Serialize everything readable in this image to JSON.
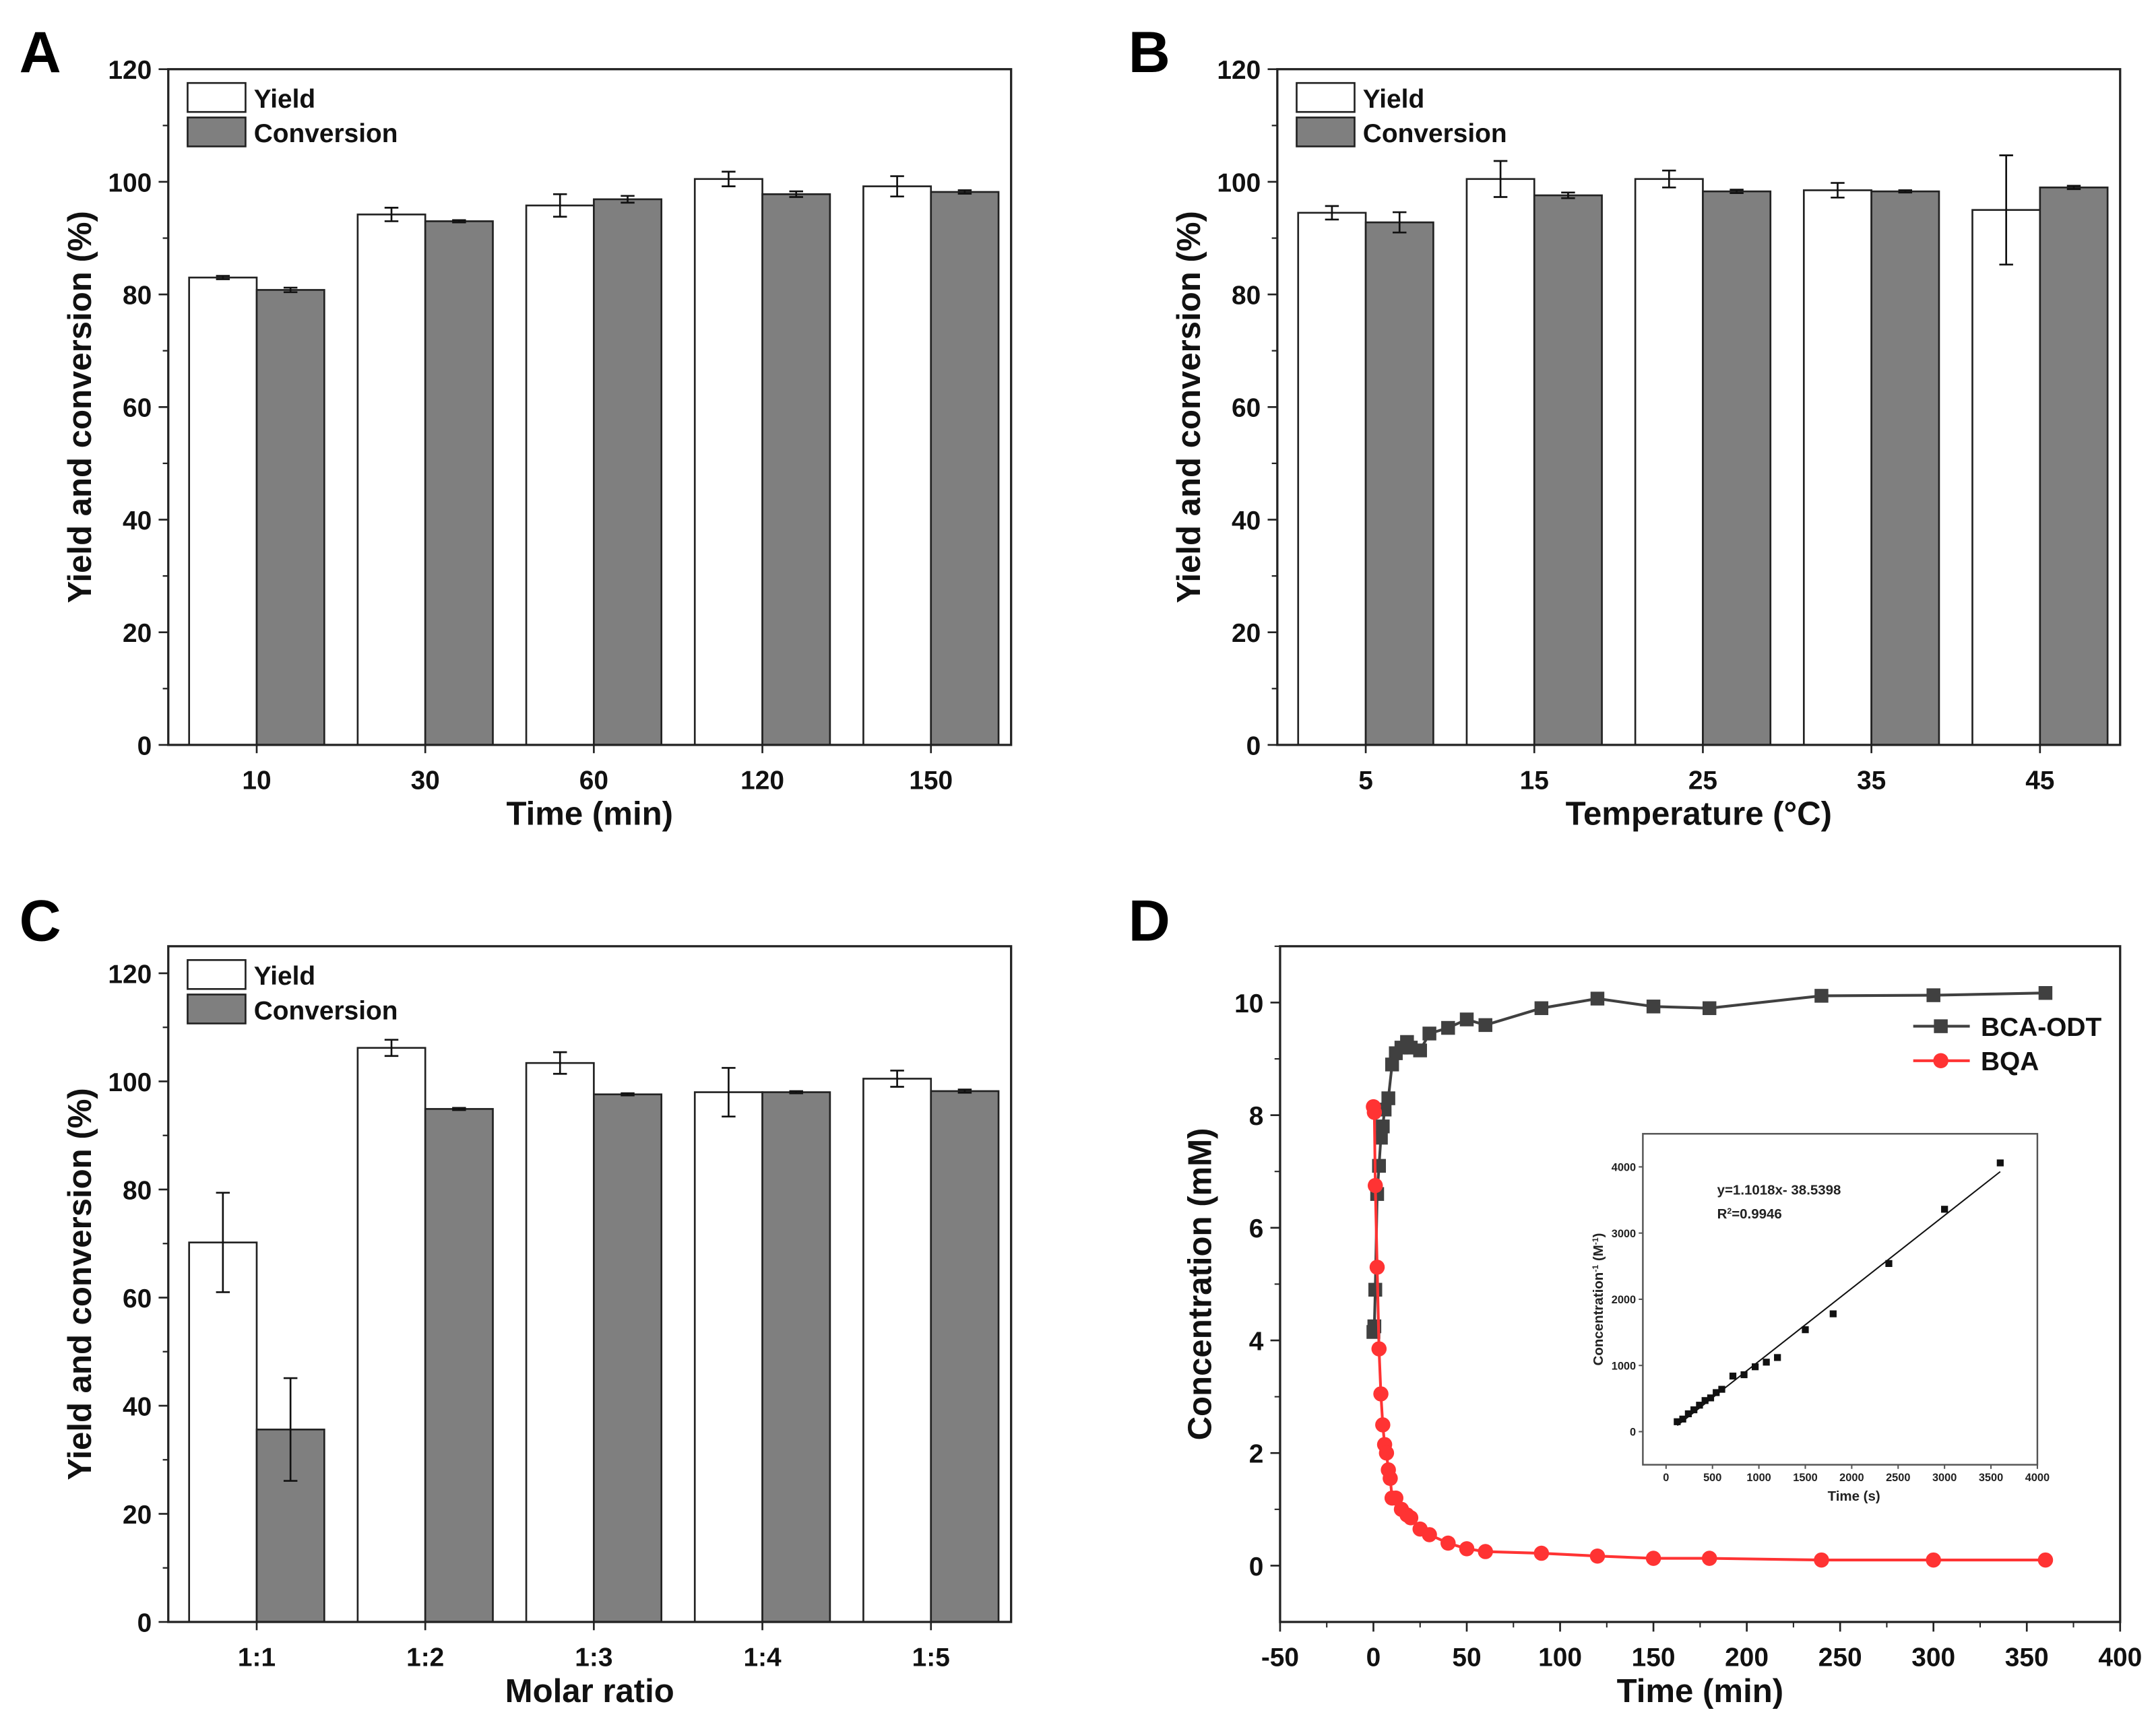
{
  "chart_data": [
    {
      "panel": "A",
      "type": "bar",
      "xlabel": "Time (min)",
      "ylabel": "Yield and conversion (%)",
      "ylim": [
        0,
        120
      ],
      "yticks": [
        0,
        20,
        40,
        60,
        80,
        100,
        120
      ],
      "categories": [
        "10",
        "30",
        "60",
        "120",
        "150"
      ],
      "legend_position": "top-left",
      "series": [
        {
          "name": "Yield",
          "color": "#ffffff",
          "values": [
            83.0,
            94.2,
            95.8,
            100.5,
            99.2
          ],
          "errors": [
            0.3,
            1.2,
            2.0,
            1.3,
            1.8
          ]
        },
        {
          "name": "Conversion",
          "color": "#7f7f7f",
          "values": [
            80.8,
            93.0,
            96.9,
            97.8,
            98.2
          ],
          "errors": [
            0.4,
            0.2,
            0.6,
            0.5,
            0.3
          ]
        }
      ]
    },
    {
      "panel": "B",
      "type": "bar",
      "xlabel": "Temperature (°C)",
      "ylabel": "Yield and conversion (%)",
      "ylim": [
        0,
        120
      ],
      "yticks": [
        0,
        20,
        40,
        60,
        80,
        100,
        120
      ],
      "categories": [
        "5",
        "15",
        "25",
        "35",
        "45"
      ],
      "legend_position": "top-left",
      "series": [
        {
          "name": "Yield",
          "color": "#ffffff",
          "values": [
            94.5,
            100.5,
            100.5,
            98.5,
            95.0
          ],
          "errors": [
            1.2,
            3.2,
            1.5,
            1.3,
            9.7
          ]
        },
        {
          "name": "Conversion",
          "color": "#7f7f7f",
          "values": [
            92.8,
            97.6,
            98.3,
            98.3,
            99.0
          ],
          "errors": [
            1.8,
            0.5,
            0.3,
            0.2,
            0.3
          ]
        }
      ]
    },
    {
      "panel": "C",
      "type": "bar",
      "xlabel": "Molar ratio",
      "ylabel": "Yield and conversion (%)",
      "ylim": [
        0,
        125
      ],
      "yticks": [
        0,
        20,
        40,
        60,
        80,
        100,
        120
      ],
      "categories": [
        "1:1",
        "1:2",
        "1:3",
        "1:4",
        "1:5"
      ],
      "legend_position": "top-left",
      "series": [
        {
          "name": "Yield",
          "color": "#ffffff",
          "values": [
            70.2,
            106.2,
            103.4,
            98.0,
            100.5
          ],
          "errors": [
            9.2,
            1.5,
            2.0,
            4.5,
            1.5
          ]
        },
        {
          "name": "Conversion",
          "color": "#7f7f7f",
          "values": [
            35.6,
            94.9,
            97.6,
            98.0,
            98.2
          ],
          "errors": [
            9.5,
            0.2,
            0.2,
            0.2,
            0.3
          ]
        }
      ]
    },
    {
      "panel": "D",
      "type": "line",
      "xlabel": "Time (min)",
      "ylabel": "Concentration (mM)",
      "xlim": [
        -50,
        400
      ],
      "ylim": [
        -1,
        11
      ],
      "xticks": [
        -50,
        0,
        50,
        100,
        150,
        200,
        250,
        300,
        350,
        400
      ],
      "yticks": [
        0,
        2,
        4,
        6,
        8,
        10
      ],
      "legend_position": "top-right",
      "series": [
        {
          "name": "BCA-ODT",
          "color": "#404040",
          "marker": "square",
          "x": [
            0,
            0.5,
            1,
            2,
            3,
            4,
            5,
            6,
            8,
            10,
            12,
            15,
            18,
            20,
            25,
            30,
            40,
            50,
            60,
            90,
            120,
            150,
            180,
            240,
            300,
            360
          ],
          "y": [
            4.15,
            4.25,
            4.9,
            6.6,
            7.1,
            7.6,
            7.8,
            8.1,
            8.3,
            8.9,
            9.1,
            9.2,
            9.3,
            9.2,
            9.15,
            9.45,
            9.55,
            9.7,
            9.6,
            9.9,
            10.07,
            9.93,
            9.9,
            10.12,
            10.13,
            10.17
          ]
        },
        {
          "name": "BQA",
          "color": "#ff3333",
          "marker": "circle",
          "x": [
            0,
            0.5,
            1,
            2,
            3,
            4,
            5,
            6,
            7,
            8,
            9,
            10,
            12,
            15,
            18,
            20,
            25,
            30,
            40,
            50,
            60,
            90,
            120,
            150,
            180,
            240,
            300,
            360
          ],
          "y": [
            8.15,
            8.05,
            6.75,
            5.3,
            3.85,
            3.05,
            2.5,
            2.15,
            2.0,
            1.7,
            1.55,
            1.2,
            1.2,
            1.0,
            0.9,
            0.85,
            0.65,
            0.55,
            0.4,
            0.3,
            0.25,
            0.22,
            0.17,
            0.13,
            0.13,
            0.1,
            0.1,
            0.1
          ]
        }
      ],
      "inset": {
        "type": "scatter",
        "xlabel": "Time (s)",
        "ylabel": "Concentration",
        "ylabel_sup": "-1",
        "ylabel_unit": " (M",
        "ylabel_unit_sup": "-1",
        "ylabel_end": ")",
        "xlim": [
          -250,
          4000
        ],
        "ylim": [
          -500,
          4500
        ],
        "xticks": [
          0,
          500,
          1000,
          1500,
          2000,
          2500,
          3000,
          3500,
          4000
        ],
        "yticks": [
          0,
          1000,
          2000,
          3000,
          4000
        ],
        "x": [
          120,
          180,
          240,
          300,
          360,
          420,
          480,
          540,
          600,
          720,
          840,
          960,
          1080,
          1200,
          1500,
          1800,
          2400,
          3000,
          3600
        ],
        "y": [
          150,
          190,
          270,
          330,
          400,
          470,
          510,
          590,
          640,
          840,
          860,
          980,
          1050,
          1120,
          1540,
          1780,
          2540,
          3360,
          4060
        ],
        "fit": {
          "slope": 1.1018,
          "intercept": -38.5398,
          "x_range": [
            120,
            3600
          ]
        },
        "equation": "y=1.1018x- 38.5398",
        "r2_label": "R",
        "r2_sup": "2",
        "r2_value": "=0.9946"
      }
    }
  ]
}
